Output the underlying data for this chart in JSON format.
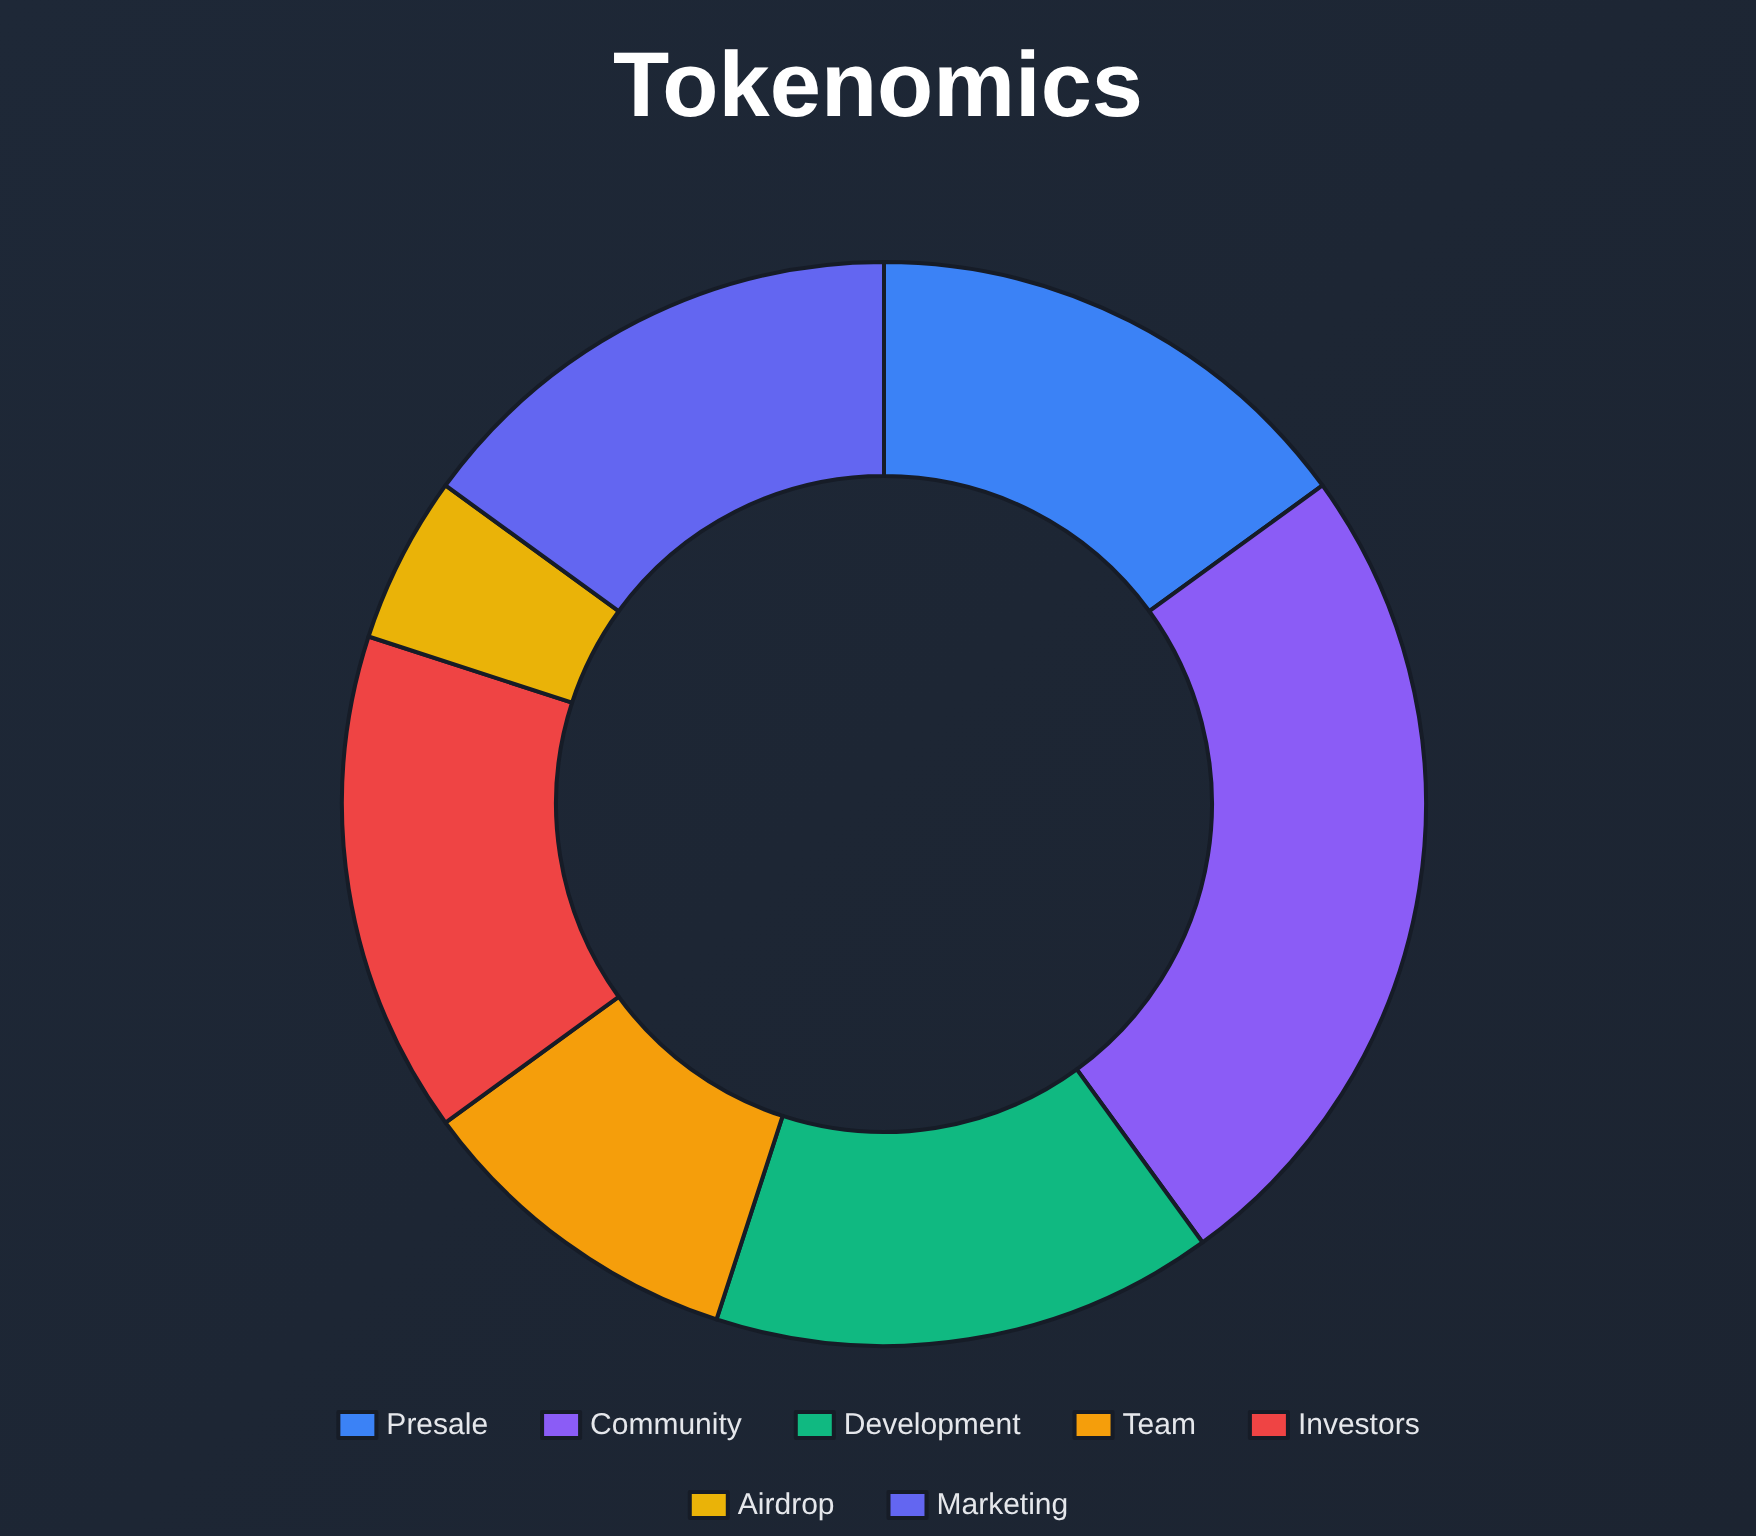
{
  "chart_data": {
    "type": "donut",
    "title": "Tokenomics",
    "categories": [
      "Presale",
      "Community",
      "Development",
      "Team",
      "Investors",
      "Airdrop",
      "Marketing"
    ],
    "values": [
      15,
      25,
      15,
      10,
      15,
      5,
      15
    ],
    "colors": [
      "#3b82f6",
      "#8b5cf6",
      "#10b981",
      "#f59e0b",
      "#ef4444",
      "#eab308",
      "#6366f1"
    ],
    "legend": "bottom"
  }
}
